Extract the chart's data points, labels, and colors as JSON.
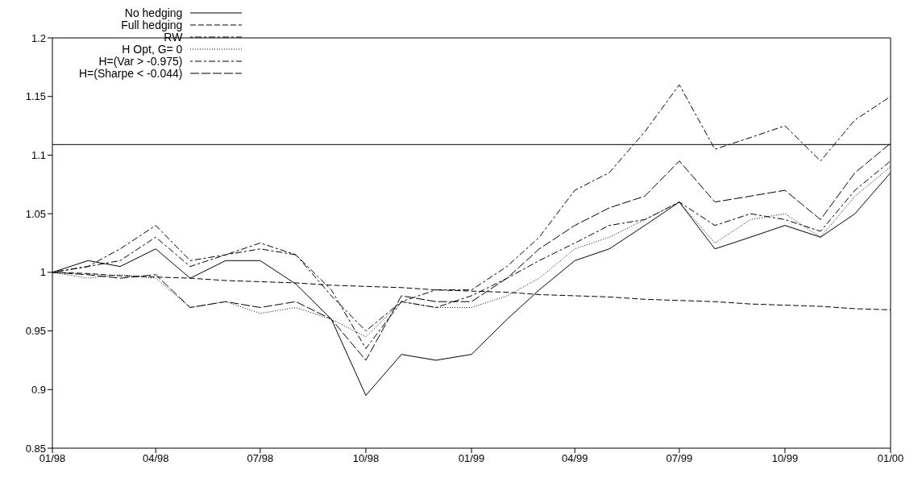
{
  "chart_data": {
    "type": "line",
    "x": [
      "1998-01",
      "1998-02",
      "1998-03",
      "1998-04",
      "1998-05",
      "1998-06",
      "1998-07",
      "1998-08",
      "1998-09",
      "1998-10",
      "1998-11",
      "1998-12",
      "1999-01",
      "1999-02",
      "1999-03",
      "1999-04",
      "1999-05",
      "1999-06",
      "1999-07",
      "1999-08",
      "1999-09",
      "1999-10",
      "1999-11",
      "1999-12",
      "2000-01"
    ],
    "series": [
      {
        "name": "No hedging",
        "color": "#000000",
        "line_style": "solid",
        "values": [
          1.0,
          1.01,
          1.005,
          1.02,
          0.995,
          1.01,
          1.01,
          0.99,
          0.96,
          0.895,
          0.93,
          0.925,
          0.93,
          0.96,
          0.985,
          1.01,
          1.02,
          1.04,
          1.06,
          1.02,
          1.03,
          1.04,
          1.03,
          1.05,
          1.085
        ]
      },
      {
        "name": "Full hedging",
        "color": "#000000",
        "line_style": "dashed",
        "values": [
          1.0,
          0.999,
          0.997,
          0.996,
          0.995,
          0.993,
          0.992,
          0.991,
          0.989,
          0.988,
          0.987,
          0.985,
          0.984,
          0.983,
          0.981,
          0.98,
          0.979,
          0.977,
          0.976,
          0.975,
          0.973,
          0.972,
          0.971,
          0.969,
          0.968
        ]
      },
      {
        "name": "RW",
        "color": "#000000",
        "line_style": "dashed",
        "values": [
          1.0,
          1.005,
          1.01,
          1.03,
          1.005,
          1.015,
          1.025,
          1.015,
          0.98,
          0.95,
          0.975,
          0.97,
          0.98,
          0.995,
          1.01,
          1.025,
          1.04,
          1.045,
          1.06,
          1.04,
          1.05,
          1.045,
          1.035,
          1.07,
          1.095
        ]
      },
      {
        "name": "H Opt, G= 0",
        "color": "#000000",
        "line_style": "dotted",
        "values": [
          1.0,
          0.995,
          0.998,
          0.995,
          0.97,
          0.975,
          0.965,
          0.97,
          0.96,
          0.945,
          0.975,
          0.97,
          0.97,
          0.98,
          0.995,
          1.02,
          1.03,
          1.045,
          1.06,
          1.025,
          1.045,
          1.05,
          1.03,
          1.065,
          1.09
        ]
      },
      {
        "name": "H=(Var > -0.975)",
        "color": "#000000",
        "line_style": "dashed",
        "values": [
          1.0,
          1.005,
          1.02,
          1.04,
          1.01,
          1.015,
          1.02,
          1.015,
          0.985,
          0.935,
          0.975,
          0.985,
          0.985,
          1.005,
          1.03,
          1.07,
          1.085,
          1.12,
          1.16,
          1.105,
          1.115,
          1.125,
          1.095,
          1.13,
          1.15
        ]
      },
      {
        "name": "H=(Sharpe < -0.044)",
        "color": "#000000",
        "line_style": "dashed",
        "values": [
          1.0,
          0.998,
          0.995,
          0.998,
          0.97,
          0.975,
          0.97,
          0.975,
          0.96,
          0.925,
          0.98,
          0.975,
          0.975,
          0.995,
          1.02,
          1.04,
          1.055,
          1.065,
          1.095,
          1.06,
          1.065,
          1.07,
          1.045,
          1.085,
          1.11
        ]
      }
    ],
    "xlim": [
      "1998-01-01",
      "2000-01-01"
    ],
    "xticks": [
      {
        "value": "1998-01-01",
        "label": "01/98"
      },
      {
        "value": "1998-04-01",
        "label": "04/98"
      },
      {
        "value": "1998-07-01",
        "label": "07/98"
      },
      {
        "value": "1998-10-01",
        "label": "10/98"
      },
      {
        "value": "1999-01-01",
        "label": "01/99"
      },
      {
        "value": "1999-04-01",
        "label": "04/99"
      },
      {
        "value": "1999-07-01",
        "label": "07/99"
      },
      {
        "value": "1999-10-01",
        "label": "10/99"
      },
      {
        "value": "2000-01-01",
        "label": "01/00"
      }
    ],
    "ylim": [
      0.85,
      1.2
    ],
    "yticks": [
      0.85,
      0.9,
      0.95,
      1,
      1.05,
      1.1,
      1.15,
      1.2
    ],
    "ref_lines": [
      {
        "axis": "y",
        "value": 1.109,
        "color": "#000000",
        "line_style": "solid"
      }
    ],
    "legend": "top left",
    "grid": false,
    "marker": "none"
  }
}
